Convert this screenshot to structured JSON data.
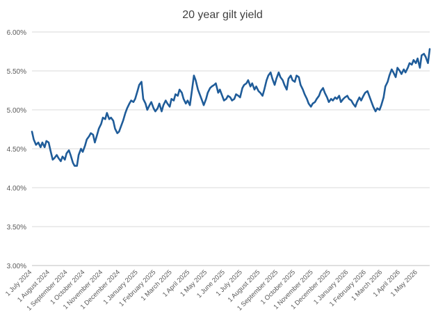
{
  "chart_data": {
    "type": "line",
    "title": "20 year gilt yield",
    "xlabel": "",
    "ylabel": "",
    "ylim": [
      0.03,
      0.06
    ],
    "y_ticks": [
      {
        "value": 0.03,
        "label": "3.00%"
      },
      {
        "value": 0.035,
        "label": "3.50%"
      },
      {
        "value": 0.04,
        "label": "4.00%"
      },
      {
        "value": 0.045,
        "label": "4.50%"
      },
      {
        "value": 0.05,
        "label": "5.00%"
      },
      {
        "value": 0.055,
        "label": "5.50%"
      },
      {
        "value": 0.06,
        "label": "6.00%"
      }
    ],
    "x_range": [
      "2024-07-01",
      "2026-05-22"
    ],
    "x_ticks": [
      {
        "date": "2024-07-01",
        "label": "1 July 2024"
      },
      {
        "date": "2024-08-01",
        "label": "1 August 2024"
      },
      {
        "date": "2024-09-01",
        "label": "1 September 2024"
      },
      {
        "date": "2024-10-01",
        "label": "1 October 2024"
      },
      {
        "date": "2024-11-01",
        "label": "1 November 2024"
      },
      {
        "date": "2024-12-01",
        "label": "1 December 2024"
      },
      {
        "date": "2025-01-01",
        "label": "1 January 2025"
      },
      {
        "date": "2025-02-01",
        "label": "1 February 2025"
      },
      {
        "date": "2025-03-01",
        "label": "1 March 2025"
      },
      {
        "date": "2025-04-01",
        "label": "1 April 2025"
      },
      {
        "date": "2025-05-01",
        "label": "1 May 2025"
      },
      {
        "date": "2025-06-01",
        "label": "1 June 2025"
      },
      {
        "date": "2025-07-01",
        "label": "1 July 2025"
      },
      {
        "date": "2025-08-01",
        "label": "1 August 2025"
      },
      {
        "date": "2025-09-01",
        "label": "1 September 2025"
      },
      {
        "date": "2025-10-01",
        "label": "1 October 2025"
      },
      {
        "date": "2025-11-01",
        "label": "1 November 2025"
      },
      {
        "date": "2025-12-01",
        "label": "1 December 2025"
      },
      {
        "date": "2026-01-01",
        "label": "1 January 2026"
      },
      {
        "date": "2026-02-01",
        "label": "1 February 2026"
      },
      {
        "date": "2026-03-01",
        "label": "1 March 2026"
      },
      {
        "date": "2026-04-01",
        "label": "1 April 2026"
      },
      {
        "date": "2026-05-01",
        "label": "1 May 2026"
      }
    ],
    "grid": "horizontal",
    "legend": "none",
    "line_color": "#1f5c99",
    "grid_color": "#d9d9d9",
    "text_color": "#595959",
    "series": [
      {
        "x": [
          "2024-07-01",
          "2024-07-04",
          "2024-07-08",
          "2024-07-12",
          "2024-07-16",
          "2024-07-19",
          "2024-07-23",
          "2024-07-26",
          "2024-07-30",
          "2024-08-02",
          "2024-08-06",
          "2024-08-09",
          "2024-08-13",
          "2024-08-16",
          "2024-08-20",
          "2024-08-23",
          "2024-08-27",
          "2024-08-30",
          "2024-09-03",
          "2024-09-06",
          "2024-09-10",
          "2024-09-13",
          "2024-09-17",
          "2024-09-20",
          "2024-09-24",
          "2024-09-27",
          "2024-10-01",
          "2024-10-04",
          "2024-10-08",
          "2024-10-11",
          "2024-10-15",
          "2024-10-18",
          "2024-10-22",
          "2024-10-25",
          "2024-10-29",
          "2024-11-01",
          "2024-11-05",
          "2024-11-08",
          "2024-11-12",
          "2024-11-15",
          "2024-11-19",
          "2024-11-22",
          "2024-11-26",
          "2024-11-29",
          "2024-12-03",
          "2024-12-06",
          "2024-12-10",
          "2024-12-13",
          "2024-12-17",
          "2024-12-20",
          "2024-12-24",
          "2024-12-27",
          "2024-12-31",
          "2025-01-03",
          "2025-01-07",
          "2025-01-10",
          "2025-01-14",
          "2025-01-17",
          "2025-01-21",
          "2025-01-24",
          "2025-01-28",
          "2025-01-31",
          "2025-02-04",
          "2025-02-07",
          "2025-02-11",
          "2025-02-14",
          "2025-02-18",
          "2025-02-21",
          "2025-02-25",
          "2025-02-28",
          "2025-03-04",
          "2025-03-07",
          "2025-03-11",
          "2025-03-14",
          "2025-03-18",
          "2025-03-21",
          "2025-03-25",
          "2025-03-28",
          "2025-04-01",
          "2025-04-04",
          "2025-04-08",
          "2025-04-11",
          "2025-04-15",
          "2025-04-18",
          "2025-04-22",
          "2025-04-25",
          "2025-04-29",
          "2025-05-02",
          "2025-05-06",
          "2025-05-09",
          "2025-05-13",
          "2025-05-16",
          "2025-05-20",
          "2025-05-23",
          "2025-05-27",
          "2025-05-30",
          "2025-06-03",
          "2025-06-06",
          "2025-06-10",
          "2025-06-13",
          "2025-06-17",
          "2025-06-20",
          "2025-06-24",
          "2025-06-27",
          "2025-07-01",
          "2025-07-04",
          "2025-07-08",
          "2025-07-11",
          "2025-07-15",
          "2025-07-18",
          "2025-07-22",
          "2025-07-25",
          "2025-07-29",
          "2025-08-01",
          "2025-08-05",
          "2025-08-08",
          "2025-08-12",
          "2025-08-15",
          "2025-08-19",
          "2025-08-22",
          "2025-08-26",
          "2025-08-29",
          "2025-09-02",
          "2025-09-05",
          "2025-09-09",
          "2025-09-12",
          "2025-09-16",
          "2025-09-19",
          "2025-09-23",
          "2025-09-26",
          "2025-09-30",
          "2025-10-03",
          "2025-10-07",
          "2025-10-10",
          "2025-10-14",
          "2025-10-17",
          "2025-10-21",
          "2025-10-24",
          "2025-10-28",
          "2025-10-31",
          "2025-11-04",
          "2025-11-07",
          "2025-11-11",
          "2025-11-14",
          "2025-11-18",
          "2025-11-21",
          "2025-11-25",
          "2025-11-28",
          "2025-12-02",
          "2025-12-05",
          "2025-12-09",
          "2025-12-12",
          "2025-12-16",
          "2025-12-19",
          "2025-12-23",
          "2025-12-26",
          "2025-12-30",
          "2026-01-02",
          "2026-01-06",
          "2026-01-09",
          "2026-01-13",
          "2026-01-16",
          "2026-01-20",
          "2026-01-23",
          "2026-01-27",
          "2026-01-30",
          "2026-02-03",
          "2026-02-06",
          "2026-02-10",
          "2026-02-13",
          "2026-02-17",
          "2026-02-20",
          "2026-02-24",
          "2026-02-27",
          "2026-03-03",
          "2026-03-06",
          "2026-03-10",
          "2026-03-13",
          "2026-03-17",
          "2026-03-20",
          "2026-03-24",
          "2026-03-27",
          "2026-03-31",
          "2026-04-03",
          "2026-04-07",
          "2026-04-10",
          "2026-04-14",
          "2026-04-17",
          "2026-04-21",
          "2026-04-24",
          "2026-04-28",
          "2026-05-01",
          "2026-05-05",
          "2026-05-08",
          "2026-05-12",
          "2026-05-15",
          "2026-05-19",
          "2026-05-22"
        ],
        "values": [
          0.0472,
          0.0462,
          0.0455,
          0.0458,
          0.0452,
          0.0458,
          0.0452,
          0.046,
          0.0458,
          0.0448,
          0.0436,
          0.0438,
          0.0442,
          0.0438,
          0.0434,
          0.044,
          0.0436,
          0.0444,
          0.0448,
          0.0442,
          0.0432,
          0.0428,
          0.0428,
          0.0442,
          0.045,
          0.0446,
          0.0454,
          0.0462,
          0.0466,
          0.047,
          0.0468,
          0.0458,
          0.0468,
          0.0476,
          0.0482,
          0.049,
          0.0488,
          0.0496,
          0.0488,
          0.049,
          0.0486,
          0.0476,
          0.047,
          0.0472,
          0.048,
          0.0486,
          0.0496,
          0.0502,
          0.0508,
          0.0512,
          0.051,
          0.0514,
          0.0524,
          0.0532,
          0.0536,
          0.0514,
          0.0508,
          0.05,
          0.0506,
          0.051,
          0.0502,
          0.0498,
          0.0502,
          0.0508,
          0.0498,
          0.0506,
          0.0512,
          0.0508,
          0.0504,
          0.0514,
          0.0512,
          0.052,
          0.0518,
          0.0526,
          0.0522,
          0.0514,
          0.0508,
          0.0512,
          0.0506,
          0.0522,
          0.0544,
          0.0538,
          0.0526,
          0.052,
          0.0512,
          0.0506,
          0.0514,
          0.0522,
          0.0528,
          0.053,
          0.0532,
          0.0534,
          0.0522,
          0.0526,
          0.0518,
          0.0512,
          0.0514,
          0.0518,
          0.0516,
          0.0512,
          0.0514,
          0.052,
          0.0518,
          0.0516,
          0.0528,
          0.0532,
          0.0534,
          0.0538,
          0.053,
          0.0534,
          0.0526,
          0.053,
          0.0524,
          0.0522,
          0.0518,
          0.0526,
          0.0538,
          0.0544,
          0.0548,
          0.054,
          0.0532,
          0.054,
          0.0548,
          0.0542,
          0.0538,
          0.0532,
          0.0526,
          0.054,
          0.0544,
          0.0538,
          0.0536,
          0.0544,
          0.0542,
          0.0532,
          0.0526,
          0.052,
          0.0514,
          0.0508,
          0.0504,
          0.0508,
          0.051,
          0.0514,
          0.0518,
          0.0524,
          0.0528,
          0.0522,
          0.0516,
          0.051,
          0.0514,
          0.0512,
          0.0516,
          0.0514,
          0.0518,
          0.051,
          0.0514,
          0.0516,
          0.0518,
          0.0514,
          0.0512,
          0.0508,
          0.0504,
          0.051,
          0.0516,
          0.0512,
          0.0518,
          0.0522,
          0.0524,
          0.0518,
          0.051,
          0.0504,
          0.0498,
          0.0502,
          0.05,
          0.0506,
          0.0516,
          0.053,
          0.0536,
          0.0544,
          0.0552,
          0.0548,
          0.0542,
          0.0554,
          0.055,
          0.0546,
          0.0552,
          0.0548,
          0.0554,
          0.056,
          0.0558,
          0.0564,
          0.056,
          0.0566,
          0.0554,
          0.057,
          0.0572,
          0.0568,
          0.056,
          0.0578
        ]
      }
    ]
  }
}
